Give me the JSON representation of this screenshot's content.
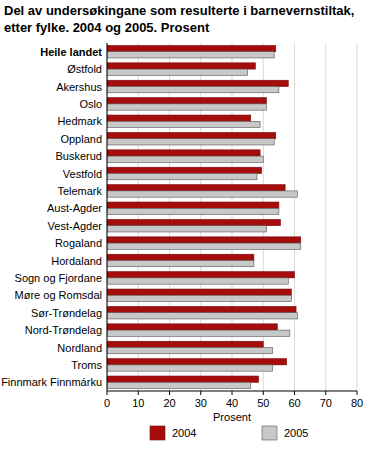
{
  "chart_data": {
    "type": "bar",
    "orientation": "horizontal",
    "title": "Del av undersøkingane som resulterte i barnevernstiltak, etter fylke. 2004 og 2005. Prosent",
    "x_label": "Prosent",
    "categories": [
      "Heile landet",
      "Østfold",
      "Akershus",
      "Oslo",
      "Hedmark",
      "Oppland",
      "Buskerud",
      "Vestfold",
      "Telemark",
      "Aust-Agder",
      "Vest-Agder",
      "Rogaland",
      "Hordaland",
      "Sogn og Fjordane",
      "Møre og Romsdal",
      "Sør-Trøndelag",
      "Nord-Trøndelag",
      "Nordland",
      "Troms",
      "Finnmark Finnmárku"
    ],
    "series": [
      {
        "name": "2004",
        "color": "#a50d0d",
        "values": [
          54,
          47.5,
          58,
          51,
          46,
          54,
          49,
          49.5,
          57,
          55,
          55.5,
          62,
          47,
          60,
          59,
          60.5,
          54.5,
          50,
          57.5,
          48.5
        ]
      },
      {
        "name": "2005",
        "color": "#c8c8c8",
        "values": [
          53.5,
          45,
          55,
          51,
          49,
          53.5,
          50,
          48,
          61,
          55,
          51,
          62,
          47,
          58,
          59,
          61,
          58.5,
          53,
          53,
          46
        ]
      }
    ],
    "xlim": [
      0,
      80
    ],
    "xticks": [
      0,
      10,
      20,
      30,
      40,
      50,
      60,
      70,
      80
    ],
    "grid": true,
    "legend": "bottom"
  }
}
